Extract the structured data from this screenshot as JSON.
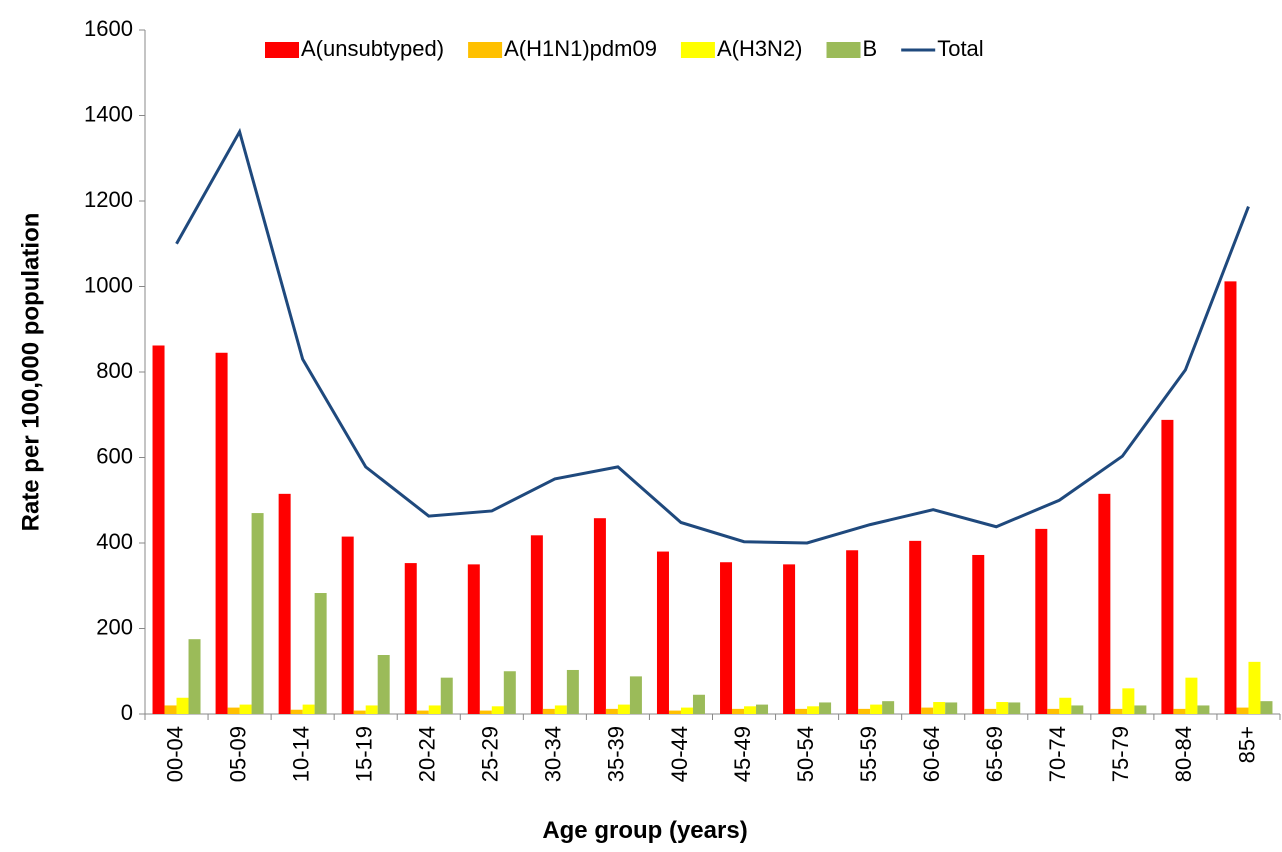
{
  "chart_data": {
    "type": "bar",
    "x_label": "Age group (years)",
    "y_label": "Rate per 100,000 population",
    "categories": [
      "00-04",
      "05-09",
      "10-14",
      "15-19",
      "20-24",
      "25-29",
      "30-34",
      "35-39",
      "40-44",
      "45-49",
      "50-54",
      "55-59",
      "60-64",
      "65-69",
      "70-74",
      "75-79",
      "80-84",
      "85+"
    ],
    "series": [
      {
        "name": "A(unsubtyped)",
        "color": "#ff0000",
        "type": "bar",
        "values": [
          862,
          845,
          515,
          415,
          353,
          350,
          418,
          458,
          380,
          355,
          350,
          383,
          405,
          372,
          433,
          515,
          688,
          1012
        ]
      },
      {
        "name": "A(H1N1)pdm09",
        "color": "#ffc000",
        "type": "bar",
        "values": [
          20,
          15,
          10,
          8,
          8,
          8,
          12,
          12,
          8,
          12,
          12,
          12,
          15,
          12,
          12,
          12,
          12,
          15
        ]
      },
      {
        "name": "A(H3N2)",
        "color": "#ffff00",
        "type": "bar",
        "values": [
          38,
          22,
          22,
          20,
          20,
          18,
          20,
          22,
          15,
          18,
          18,
          22,
          28,
          28,
          38,
          60,
          85,
          122
        ]
      },
      {
        "name": "B",
        "color": "#9bbb59",
        "type": "bar",
        "values": [
          175,
          470,
          283,
          138,
          85,
          100,
          103,
          88,
          45,
          22,
          27,
          30,
          27,
          27,
          20,
          20,
          20,
          30
        ]
      },
      {
        "name": "Total",
        "color": "#1f497d",
        "type": "line",
        "values": [
          1100,
          1362,
          830,
          578,
          463,
          475,
          550,
          578,
          448,
          403,
          400,
          443,
          478,
          438,
          500,
          603,
          805,
          1187
        ]
      }
    ],
    "ylim": [
      0,
      1600
    ],
    "yticks": [
      0,
      200,
      400,
      600,
      800,
      1000,
      1200,
      1400,
      1600
    ],
    "grid": false,
    "legend": "top"
  }
}
